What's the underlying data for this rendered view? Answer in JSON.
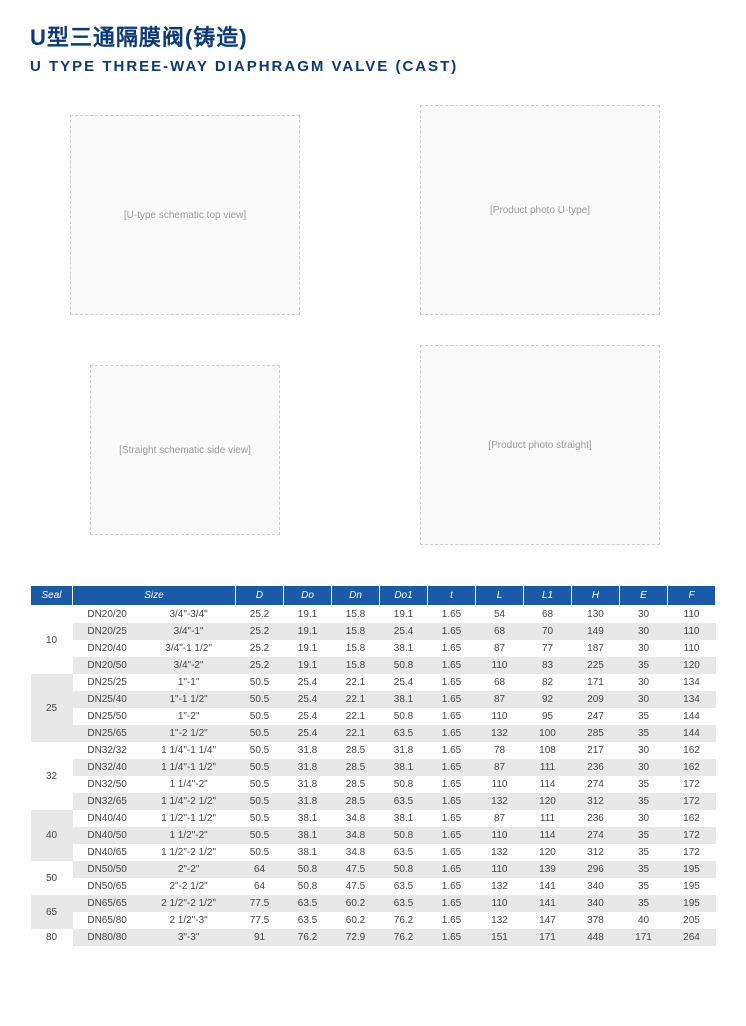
{
  "titles": {
    "cn": "U型三通隔膜阀(铸造)",
    "en": "U TYPE THREE-WAY DIAPHRAGM VALVE (CAST)"
  },
  "diagrams": {
    "d1": "[U-type schematic top view]",
    "d2": "[Product photo U-type]",
    "d3": "[Straight schematic side view]",
    "d4": "[Product photo straight]"
  },
  "table": {
    "headers": [
      "Seal",
      "Size",
      "",
      "D",
      "Do",
      "Dn",
      "Do1",
      "t",
      "L",
      "L1",
      "H",
      "E",
      "F"
    ],
    "header_colspans": [
      1,
      2,
      0,
      1,
      1,
      1,
      1,
      1,
      1,
      1,
      1,
      1,
      1
    ],
    "groups": [
      {
        "seal": "10",
        "seal_grey": false,
        "rows": [
          {
            "grey": false,
            "cells": [
              "DN20/20",
              "3/4\"-3/4\"",
              "25.2",
              "19.1",
              "15.8",
              "19.1",
              "1.65",
              "54",
              "68",
              "130",
              "30",
              "110"
            ]
          },
          {
            "grey": true,
            "cells": [
              "DN20/25",
              "3/4\"-1\"",
              "25.2",
              "19.1",
              "15.8",
              "25.4",
              "1.65",
              "68",
              "70",
              "149",
              "30",
              "110"
            ]
          },
          {
            "grey": false,
            "cells": [
              "DN20/40",
              "3/4\"-1 1/2\"",
              "25.2",
              "19.1",
              "15.8",
              "38.1",
              "1.65",
              "87",
              "77",
              "187",
              "30",
              "110"
            ]
          },
          {
            "grey": true,
            "cells": [
              "DN20/50",
              "3/4\"-2\"",
              "25.2",
              "19.1",
              "15.8",
              "50.8",
              "1.65",
              "110",
              "83",
              "225",
              "35",
              "120"
            ]
          }
        ]
      },
      {
        "seal": "25",
        "seal_grey": true,
        "rows": [
          {
            "grey": false,
            "cells": [
              "DN25/25",
              "1\"-1\"",
              "50.5",
              "25.4",
              "22.1",
              "25.4",
              "1.65",
              "68",
              "82",
              "171",
              "30",
              "134"
            ]
          },
          {
            "grey": true,
            "cells": [
              "DN25/40",
              "1\"-1 1/2\"",
              "50.5",
              "25.4",
              "22.1",
              "38.1",
              "1.65",
              "87",
              "92",
              "209",
              "30",
              "134"
            ]
          },
          {
            "grey": false,
            "cells": [
              "DN25/50",
              "1\"-2\"",
              "50.5",
              "25.4",
              "22.1",
              "50.8",
              "1.65",
              "110",
              "95",
              "247",
              "35",
              "144"
            ]
          },
          {
            "grey": true,
            "cells": [
              "DN25/65",
              "1\"-2 1/2\"",
              "50.5",
              "25.4",
              "22.1",
              "63.5",
              "1.65",
              "132",
              "100",
              "285",
              "35",
              "144"
            ]
          }
        ]
      },
      {
        "seal": "32",
        "seal_grey": false,
        "rows": [
          {
            "grey": false,
            "cells": [
              "DN32/32",
              "1 1/4\"-1 1/4\"",
              "50.5",
              "31.8",
              "28.5",
              "31.8",
              "1.65",
              "78",
              "108",
              "217",
              "30",
              "162"
            ]
          },
          {
            "grey": true,
            "cells": [
              "DN32/40",
              "1 1/4\"-1 1/2\"",
              "50.5",
              "31.8",
              "28.5",
              "38.1",
              "1.65",
              "87",
              "111",
              "236",
              "30",
              "162"
            ]
          },
          {
            "grey": false,
            "cells": [
              "DN32/50",
              "1 1/4\"-2\"",
              "50.5",
              "31.8",
              "28.5",
              "50.8",
              "1.65",
              "110",
              "114",
              "274",
              "35",
              "172"
            ]
          },
          {
            "grey": true,
            "cells": [
              "DN32/65",
              "1 1/4\"-2 1/2\"",
              "50.5",
              "31.8",
              "28.5",
              "63.5",
              "1.65",
              "132",
              "120",
              "312",
              "35",
              "172"
            ]
          }
        ]
      },
      {
        "seal": "40",
        "seal_grey": true,
        "rows": [
          {
            "grey": false,
            "cells": [
              "DN40/40",
              "1 1/2\"-1 1/2\"",
              "50.5",
              "38.1",
              "34.8",
              "38.1",
              "1.65",
              "87",
              "111",
              "236",
              "30",
              "162"
            ]
          },
          {
            "grey": true,
            "cells": [
              "DN40/50",
              "1 1/2\"-2\"",
              "50.5",
              "38.1",
              "34.8",
              "50.8",
              "1.65",
              "110",
              "114",
              "274",
              "35",
              "172"
            ]
          },
          {
            "grey": false,
            "cells": [
              "DN40/65",
              "1 1/2\"-2 1/2\"",
              "50.5",
              "38.1",
              "34.8",
              "63.5",
              "1.65",
              "132",
              "120",
              "312",
              "35",
              "172"
            ]
          }
        ]
      },
      {
        "seal": "50",
        "seal_grey": false,
        "rows": [
          {
            "grey": true,
            "cells": [
              "DN50/50",
              "2\"-2\"",
              "64",
              "50.8",
              "47.5",
              "50.8",
              "1.65",
              "110",
              "139",
              "296",
              "35",
              "195"
            ]
          },
          {
            "grey": false,
            "cells": [
              "DN50/65",
              "2\"-2 1/2\"",
              "64",
              "50.8",
              "47.5",
              "63.5",
              "1.65",
              "132",
              "141",
              "340",
              "35",
              "195"
            ]
          }
        ]
      },
      {
        "seal": "65",
        "seal_grey": true,
        "rows": [
          {
            "grey": true,
            "cells": [
              "DN65/65",
              "2 1/2\"-2 1/2\"",
              "77.5",
              "63.5",
              "60.2",
              "63.5",
              "1.65",
              "110",
              "141",
              "340",
              "35",
              "195"
            ]
          },
          {
            "grey": false,
            "cells": [
              "DN65/80",
              "2 1/2\"-3\"",
              "77.5",
              "63.5",
              "60.2",
              "76.2",
              "1.65",
              "132",
              "147",
              "378",
              "40",
              "205"
            ]
          }
        ]
      },
      {
        "seal": "80",
        "seal_grey": false,
        "rows": [
          {
            "grey": true,
            "cells": [
              "DN80/80",
              "3\"-3\"",
              "91",
              "76.2",
              "72.9",
              "76.2",
              "1.65",
              "151",
              "171",
              "448",
              "171",
              "264"
            ]
          }
        ]
      }
    ]
  }
}
